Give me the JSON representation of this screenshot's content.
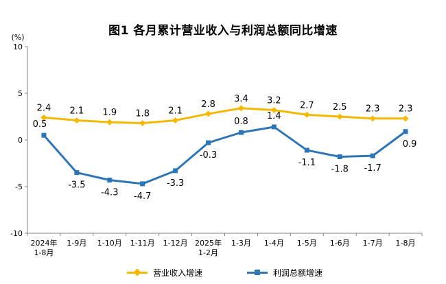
{
  "title": "图1 各月累计营业收入与利润总额同比增速",
  "chart_data": {
    "type": "line",
    "unit": "(%)",
    "categories": [
      [
        "2024年",
        "1-8月"
      ],
      [
        "1-9月"
      ],
      [
        "1-10月"
      ],
      [
        "1-11月"
      ],
      [
        "1-12月"
      ],
      [
        "2025年",
        "1-2月"
      ],
      [
        "1-3月"
      ],
      [
        "1-4月"
      ],
      [
        "1-5月"
      ],
      [
        "1-6月"
      ],
      [
        "1-7月"
      ],
      [
        "1-8月"
      ]
    ],
    "ylim": [
      -10,
      10
    ],
    "yticks": [
      10,
      5,
      0,
      -5,
      -10
    ],
    "series": [
      {
        "name": "营业收入增速",
        "color": "#F5B800",
        "marker": "diamond",
        "values": [
          2.4,
          2.1,
          1.9,
          1.8,
          2.1,
          2.8,
          3.4,
          3.2,
          2.7,
          2.5,
          2.3,
          2.3
        ],
        "labels": [
          "2.4",
          "2.1",
          "1.9",
          "1.8",
          "2.1",
          "2.8",
          "3.4",
          "3.2",
          "2.7",
          "2.5",
          "2.3",
          "2.3"
        ]
      },
      {
        "name": "利润总额增速",
        "color": "#2E75B6",
        "marker": "square",
        "values": [
          0.5,
          -3.5,
          -4.3,
          -4.7,
          -3.3,
          -0.3,
          0.8,
          1.4,
          -1.1,
          -1.8,
          -1.7,
          0.9
        ],
        "labels": [
          "0.5",
          "-3.5",
          "-4.3",
          "-4.7",
          "-3.3",
          "-0.3",
          "0.8",
          "1.4",
          "-1.1",
          "-1.8",
          "-1.7",
          "0.9"
        ]
      }
    ],
    "legend_position": "bottom",
    "grid": false
  }
}
